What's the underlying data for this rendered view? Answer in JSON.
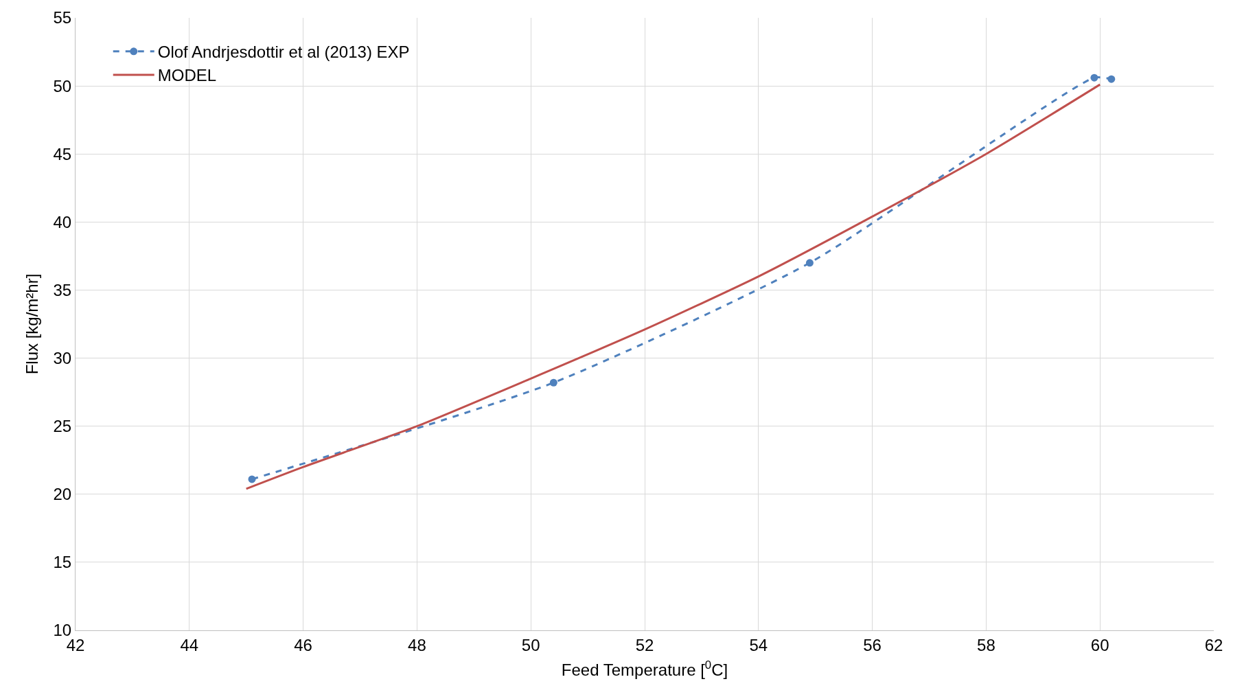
{
  "chart_data": {
    "type": "line",
    "xlabel": "Feed Temperature [$^{0}$C]",
    "ylabel": "Flux [kg/m²hr]",
    "xlim": [
      42,
      62
    ],
    "xticks": [
      42,
      44,
      46,
      48,
      50,
      52,
      54,
      56,
      58,
      60,
      62
    ],
    "ylim": [
      10,
      55
    ],
    "yticks": [
      10,
      15,
      20,
      25,
      30,
      35,
      40,
      45,
      50,
      55
    ],
    "grid": true,
    "legend": "top left",
    "series": [
      {
        "name": "Olof Andrjesdottir et al (2013) EXP",
        "color": "#4f81bd",
        "marker": "circle",
        "line_style": "dashed",
        "x": [
          45.1,
          50.4,
          54.9,
          59.9,
          60.2
        ],
        "values": [
          21.1,
          28.2,
          37.0,
          50.6,
          50.5
        ]
      },
      {
        "name": "MODEL",
        "color": "#c0504d",
        "marker": "none",
        "line_style": "solid",
        "x": [
          45,
          46,
          48,
          50,
          52,
          54,
          56,
          58,
          60
        ],
        "values": [
          20.4,
          22.0,
          25.0,
          28.5,
          32.1,
          36.0,
          40.4,
          45.0,
          50.1
        ]
      }
    ]
  }
}
